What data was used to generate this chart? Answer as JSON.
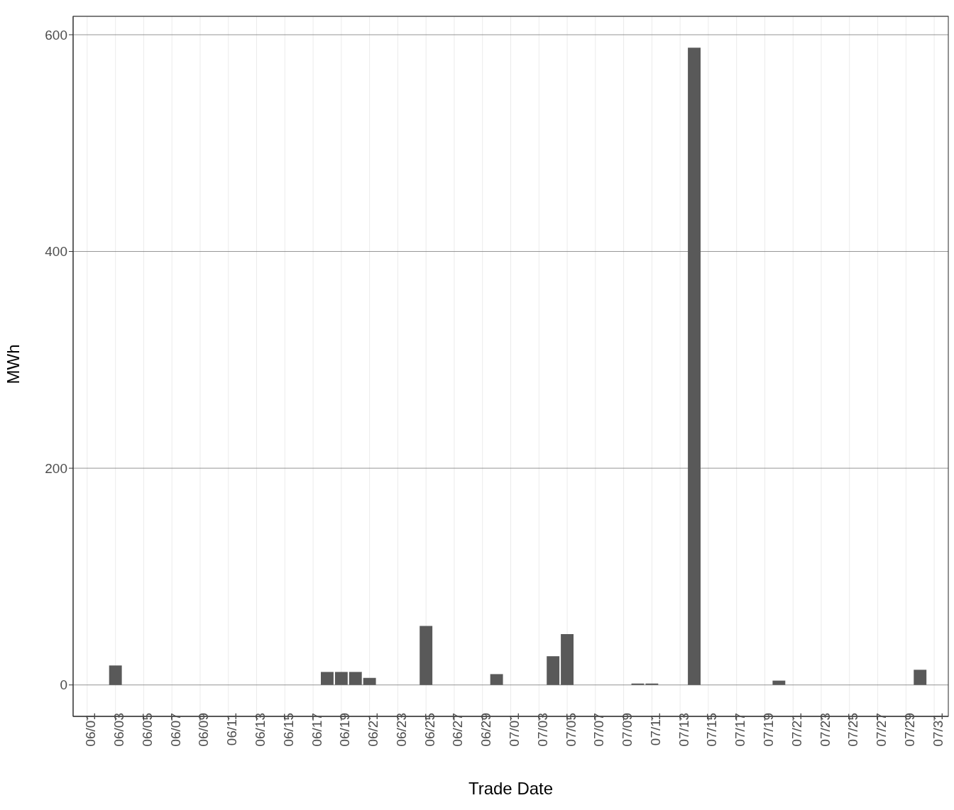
{
  "chart_data": {
    "type": "bar",
    "xlabel": "Trade Date",
    "ylabel": "MWh",
    "x": [
      "--06-03",
      "--06-18",
      "--06-19",
      "--06-20",
      "--06-21",
      "--06-25",
      "--06-30",
      "--07-04",
      "--07-05",
      "--07-10",
      "--07-11",
      "--07-14",
      "--07-20",
      "--07-30"
    ],
    "values": [
      18,
      12,
      12,
      12,
      6.5,
      54.5,
      10,
      26.5,
      47,
      1.3,
      1.3,
      588,
      4,
      14
    ],
    "color": "#595959",
    "xlim": [
      "--05-31",
      "--08-01"
    ],
    "xticks": [
      {
        "value": "--06-01",
        "label": "06/01"
      },
      {
        "value": "--06-03",
        "label": "06/03"
      },
      {
        "value": "--06-05",
        "label": "06/05"
      },
      {
        "value": "--06-07",
        "label": "06/07"
      },
      {
        "value": "--06-09",
        "label": "06/09"
      },
      {
        "value": "--06-11",
        "label": "06/11"
      },
      {
        "value": "--06-13",
        "label": "06/13"
      },
      {
        "value": "--06-15",
        "label": "06/15"
      },
      {
        "value": "--06-17",
        "label": "06/17"
      },
      {
        "value": "--06-19",
        "label": "06/19"
      },
      {
        "value": "--06-21",
        "label": "06/21"
      },
      {
        "value": "--06-23",
        "label": "06/23"
      },
      {
        "value": "--06-25",
        "label": "06/25"
      },
      {
        "value": "--06-27",
        "label": "06/27"
      },
      {
        "value": "--06-29",
        "label": "06/29"
      },
      {
        "value": "--07-01",
        "label": "07/01"
      },
      {
        "value": "--07-03",
        "label": "07/03"
      },
      {
        "value": "--07-05",
        "label": "07/05"
      },
      {
        "value": "--07-07",
        "label": "07/07"
      },
      {
        "value": "--07-09",
        "label": "07/09"
      },
      {
        "value": "--07-11",
        "label": "07/11"
      },
      {
        "value": "--07-13",
        "label": "07/13"
      },
      {
        "value": "--07-15",
        "label": "07/15"
      },
      {
        "value": "--07-17",
        "label": "07/17"
      },
      {
        "value": "--07-19",
        "label": "07/19"
      },
      {
        "value": "--07-21",
        "label": "07/21"
      },
      {
        "value": "--07-23",
        "label": "07/23"
      },
      {
        "value": "--07-25",
        "label": "07/25"
      },
      {
        "value": "--07-27",
        "label": "07/27"
      },
      {
        "value": "--07-29",
        "label": "07/29"
      },
      {
        "value": "--07-31",
        "label": "07/31"
      }
    ],
    "ylim": [
      -29,
      617
    ],
    "yticks": [
      0,
      200,
      400,
      600
    ],
    "grid": true
  }
}
